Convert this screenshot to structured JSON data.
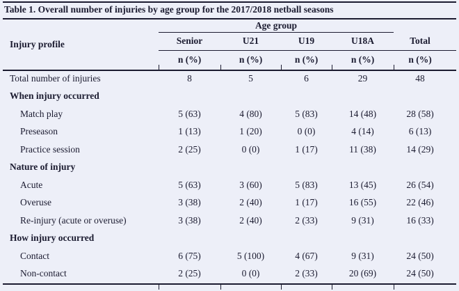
{
  "page_title": "Table 1. Overall number of injuries by age group for the 2017/2018 netball seasons",
  "colors": {
    "background": "#edeff8",
    "ink": "#1b1b30"
  },
  "table": {
    "row_header": "Injury profile",
    "group_header": "Age group",
    "columns": [
      "Senior",
      "U21",
      "U19",
      "U18A",
      "Total"
    ],
    "unit_label": "n (%)",
    "rows": [
      {
        "label": "Total number of injuries",
        "type": "data",
        "indent": false,
        "values": [
          "8",
          "5",
          "6",
          "29",
          "48"
        ]
      },
      {
        "label": "When injury occurred",
        "type": "section",
        "indent": false,
        "values": [
          "",
          "",
          "",
          "",
          ""
        ]
      },
      {
        "label": "Match play",
        "type": "data",
        "indent": true,
        "values": [
          "5 (63)",
          "4 (80)",
          "5 (83)",
          "14 (48)",
          "28 (58)"
        ]
      },
      {
        "label": "Preseason",
        "type": "data",
        "indent": true,
        "values": [
          "1 (13)",
          "1 (20)",
          "0 (0)",
          "4 (14)",
          "6 (13)"
        ]
      },
      {
        "label": "Practice session",
        "type": "data",
        "indent": true,
        "values": [
          "2 (25)",
          "0 (0)",
          "1 (17)",
          "11 (38)",
          "14 (29)"
        ]
      },
      {
        "label": "Nature of injury",
        "type": "section",
        "indent": false,
        "values": [
          "",
          "",
          "",
          "",
          ""
        ]
      },
      {
        "label": "Acute",
        "type": "data",
        "indent": true,
        "values": [
          "5 (63)",
          "3 (60)",
          "5 (83)",
          "13 (45)",
          "26 (54)"
        ]
      },
      {
        "label": "Overuse",
        "type": "data",
        "indent": true,
        "values": [
          "3 (38)",
          "2 (40)",
          "1 (17)",
          "16 (55)",
          "22 (46)"
        ]
      },
      {
        "label": "Re-injury (acute or overuse)",
        "type": "data",
        "indent": true,
        "values": [
          "3 (38)",
          "2 (40)",
          "2 (33)",
          "9 (31)",
          "16 (33)"
        ]
      },
      {
        "label": "How injury occurred",
        "type": "section",
        "indent": false,
        "values": [
          "",
          "",
          "",
          "",
          ""
        ]
      },
      {
        "label": "Contact",
        "type": "data",
        "indent": true,
        "values": [
          "6 (75)",
          "5 (100)",
          "4 (67)",
          "9 (31)",
          "24 (50)"
        ]
      },
      {
        "label": "Non-contact",
        "type": "data",
        "indent": true,
        "values": [
          "2 (25)",
          "0 (0)",
          "2 (33)",
          "20 (69)",
          "24 (50)"
        ]
      }
    ]
  }
}
